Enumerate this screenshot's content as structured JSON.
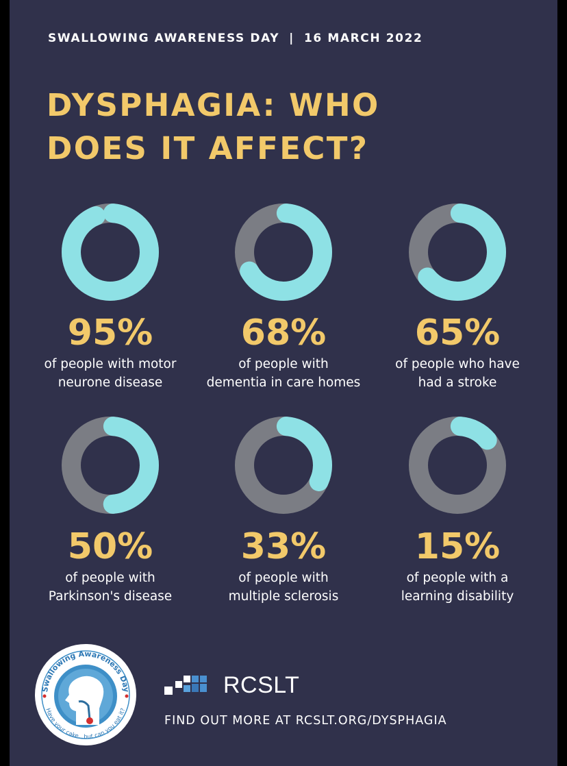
{
  "header": {
    "event": "SWALLOWING AWARENESS DAY",
    "separator": "|",
    "date": "16 MARCH 2022"
  },
  "title": {
    "line1": "DYSPHAGIA: WHO",
    "line2": "DOES IT AFFECT?"
  },
  "colors": {
    "background": "#30314b",
    "accent_yellow": "#f2c96a",
    "ring_fill": "#8ee1e5",
    "ring_track": "#7b7d84"
  },
  "chart_data": {
    "type": "donut",
    "unit": "%",
    "items": [
      {
        "value": 95,
        "label": "95%",
        "desc_line1": "of people with motor",
        "desc_line2": "neurone disease"
      },
      {
        "value": 68,
        "label": "68%",
        "desc_line1": "of people with",
        "desc_line2": "dementia in care homes"
      },
      {
        "value": 65,
        "label": "65%",
        "desc_line1": "of people who have",
        "desc_line2": "had a stroke"
      },
      {
        "value": 50,
        "label": "50%",
        "desc_line1": "of people with",
        "desc_line2": "Parkinson's disease"
      },
      {
        "value": 33,
        "label": "33%",
        "desc_line1": "of people with",
        "desc_line2": "multiple sclerosis"
      },
      {
        "value": 15,
        "label": "15%",
        "desc_line1": "of people with a",
        "desc_line2": "learning disability"
      }
    ]
  },
  "logo": {
    "badge_top_text": "Swallowing Awareness Day",
    "badge_bottom_text": "Have your cake...but can you eat it?",
    "badge_icon": "head-profile-throat-icon",
    "org_name": "RCSLT",
    "org_mark_icon": "rcslt-squares-icon"
  },
  "footer": {
    "cta": "FIND OUT MORE AT RCSLT.ORG/DYSPHAGIA"
  }
}
